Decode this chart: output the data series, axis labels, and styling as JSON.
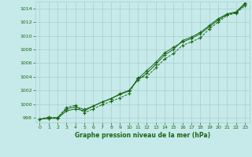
{
  "xlabel": "Graphe pression niveau de la mer (hPa)",
  "x": [
    0,
    1,
    2,
    3,
    4,
    5,
    6,
    7,
    8,
    9,
    10,
    11,
    12,
    13,
    14,
    15,
    16,
    17,
    18,
    19,
    20,
    21,
    22,
    23
  ],
  "series1": [
    997.8,
    997.9,
    997.9,
    999.0,
    999.3,
    999.0,
    999.7,
    1000.3,
    1000.8,
    1001.5,
    1002.0,
    1003.5,
    1004.5,
    1005.8,
    1007.2,
    1008.0,
    1009.3,
    1009.8,
    1010.5,
    1011.5,
    1012.5,
    1013.2,
    1013.5,
    1014.8
  ],
  "series2": [
    997.8,
    998.1,
    998.0,
    999.5,
    999.8,
    998.7,
    999.3,
    999.9,
    1000.4,
    1000.9,
    1001.5,
    1003.9,
    1004.0,
    1005.3,
    1006.6,
    1007.4,
    1008.6,
    1009.1,
    1009.7,
    1011.0,
    1012.0,
    1013.0,
    1013.3,
    1014.4
  ],
  "series3": [
    997.8,
    997.9,
    998.0,
    999.3,
    999.6,
    999.2,
    999.7,
    1000.3,
    1000.8,
    1001.4,
    1001.9,
    1003.7,
    1004.9,
    1006.1,
    1007.5,
    1008.3,
    1009.1,
    1009.6,
    1010.3,
    1011.3,
    1012.3,
    1013.1,
    1013.4,
    1014.6
  ],
  "line_color": "#1a6614",
  "bg_color": "#c6eaea",
  "grid_color": "#a8cece",
  "ylim": [
    997.3,
    1015.0
  ],
  "yticks": [
    998,
    1000,
    1002,
    1004,
    1006,
    1008,
    1010,
    1012,
    1014
  ],
  "xticks": [
    0,
    1,
    2,
    3,
    4,
    5,
    6,
    7,
    8,
    9,
    10,
    11,
    12,
    13,
    14,
    15,
    16,
    17,
    18,
    19,
    20,
    21,
    22,
    23
  ],
  "marker": "+"
}
